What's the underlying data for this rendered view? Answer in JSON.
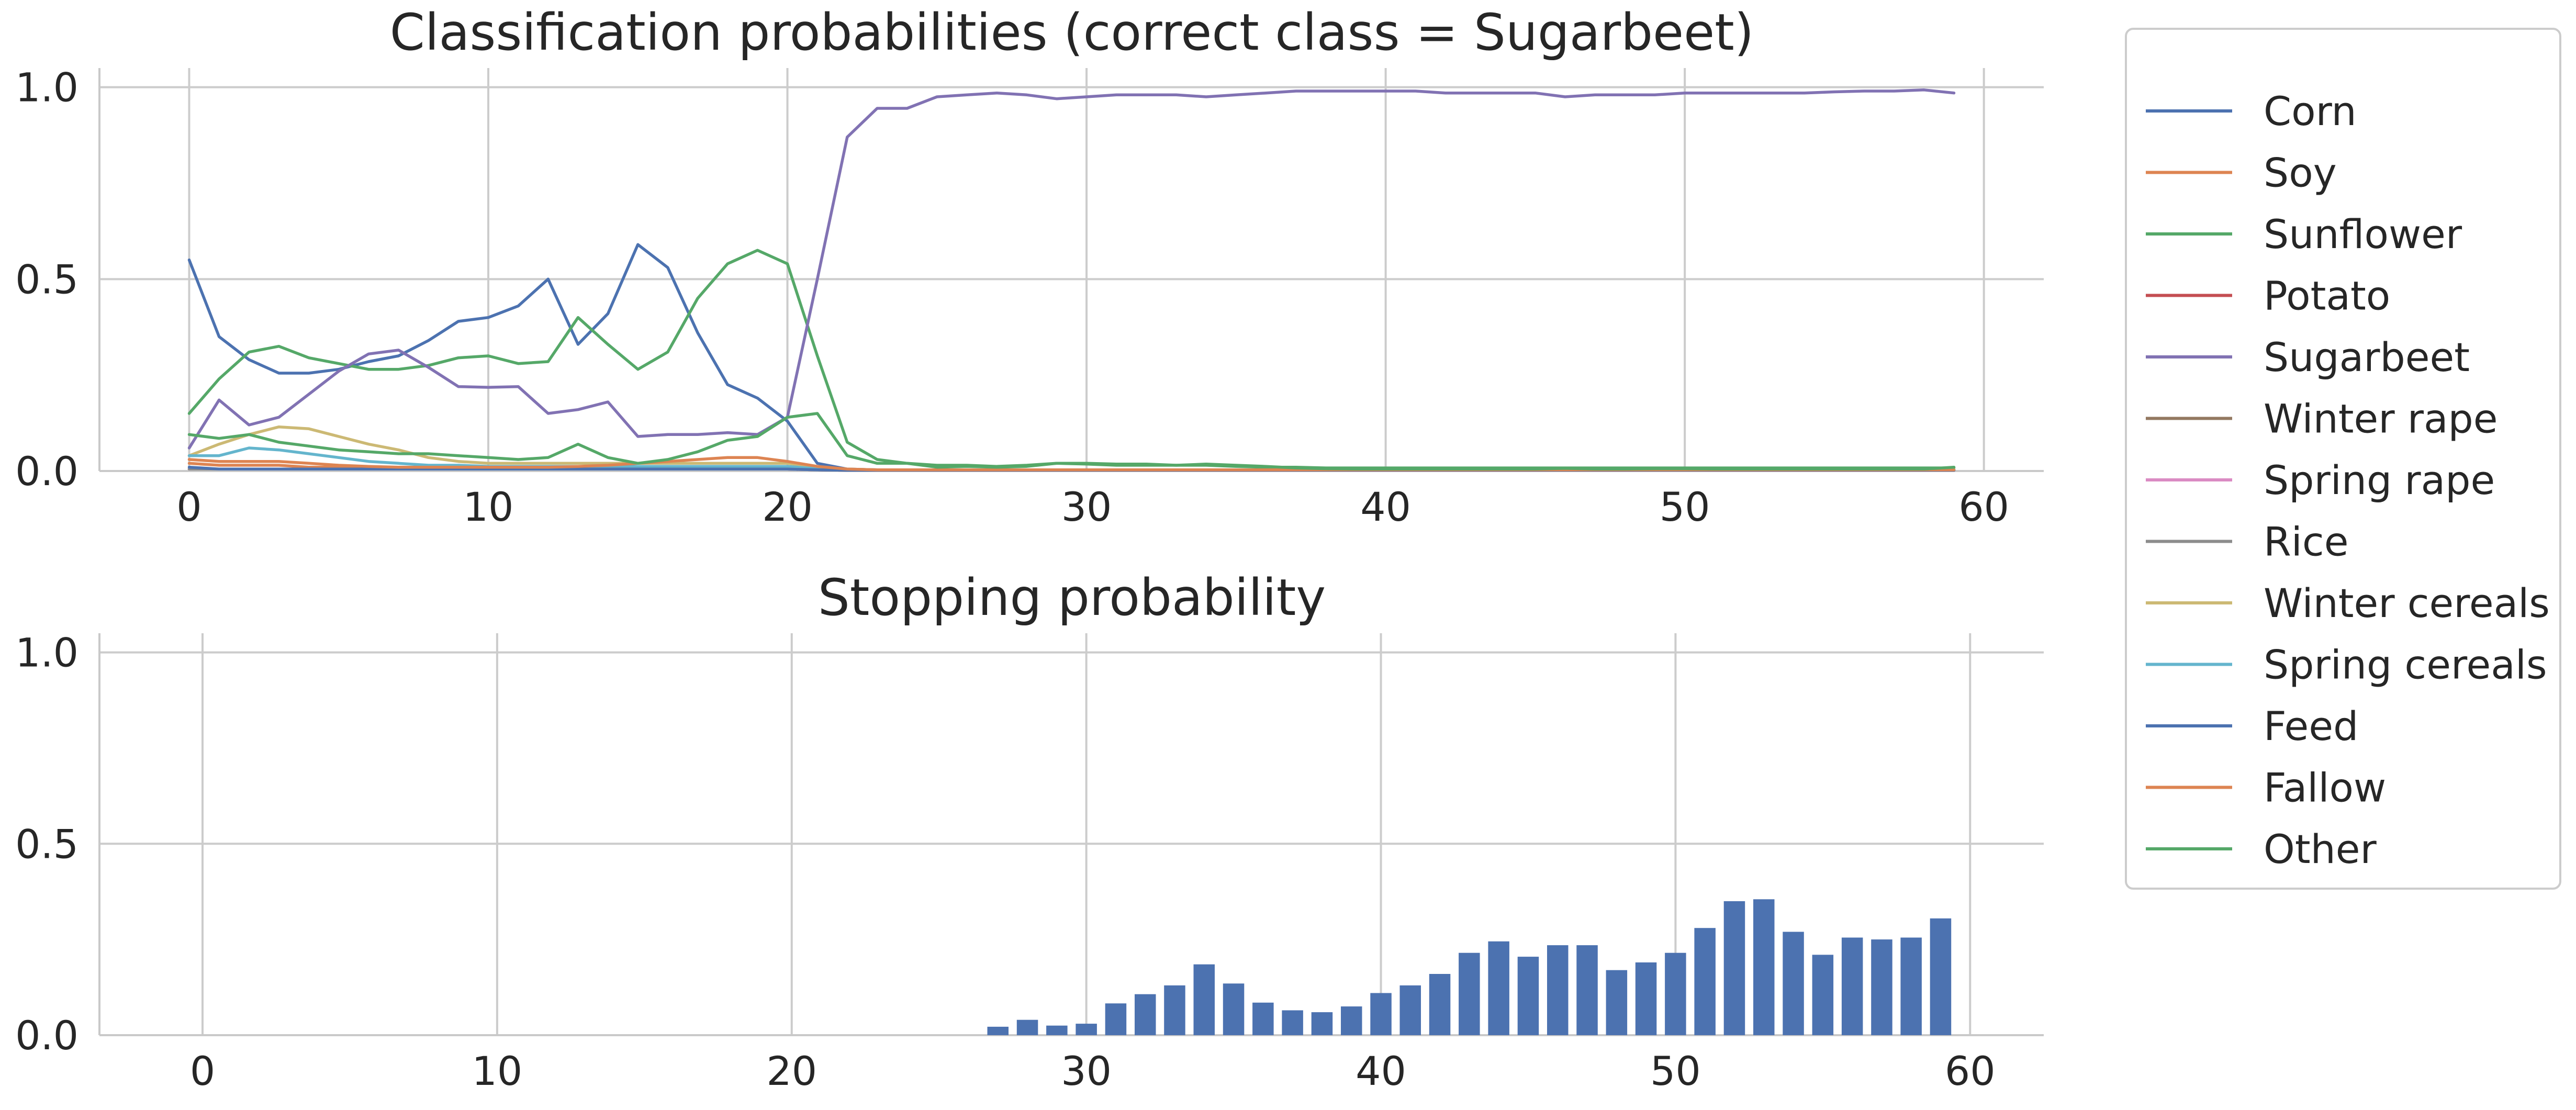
{
  "chart_data": [
    {
      "type": "line",
      "title": "Classification probabilities (correct class = Sugarbeet)",
      "xlabel": "",
      "ylabel": "",
      "xlim": [
        -3,
        62
      ],
      "ylim": [
        0,
        1.05
      ],
      "xticks": [
        0,
        10,
        20,
        30,
        40,
        50,
        60
      ],
      "yticks": [
        0.0,
        0.5,
        1.0
      ],
      "xtick_labels": [
        "0",
        "10",
        "20",
        "30",
        "40",
        "50",
        "60"
      ],
      "ytick_labels": [
        "0.0",
        "0.5",
        "1.0"
      ],
      "grid": true,
      "legend_position": "outside-right",
      "series": [
        {
          "name": "Corn",
          "color": "#4c72b0",
          "values": [
            0.55,
            0.35,
            0.29,
            0.255,
            0.255,
            0.265,
            0.285,
            0.3,
            0.34,
            0.39,
            0.4,
            0.43,
            0.5,
            0.33,
            0.41,
            0.59,
            0.53,
            0.36,
            0.225,
            0.19,
            0.13,
            0.02,
            0.005,
            0.003,
            0.003,
            0.003,
            0.003,
            0.003,
            0.003,
            0.003,
            0.003,
            0.003,
            0.003,
            0.003,
            0.003,
            0.003,
            0.003,
            0.003,
            0.003,
            0.003,
            0.003,
            0.003,
            0.003,
            0.003,
            0.003,
            0.003,
            0.003,
            0.003,
            0.003,
            0.003,
            0.003,
            0.003,
            0.003,
            0.003,
            0.003,
            0.003,
            0.003,
            0.003,
            0.003,
            0.003
          ]
        },
        {
          "name": "Soy",
          "color": "#dd8452",
          "values": [
            0.02,
            0.015,
            0.015,
            0.015,
            0.01,
            0.01,
            0.01,
            0.01,
            0.01,
            0.01,
            0.01,
            0.01,
            0.01,
            0.01,
            0.01,
            0.01,
            0.01,
            0.01,
            0.01,
            0.01,
            0.01,
            0.005,
            0.003,
            0.003,
            0.003,
            0.003,
            0.003,
            0.003,
            0.003,
            0.003,
            0.003,
            0.003,
            0.003,
            0.003,
            0.003,
            0.003,
            0.003,
            0.003,
            0.003,
            0.003,
            0.003,
            0.003,
            0.003,
            0.003,
            0.003,
            0.003,
            0.003,
            0.003,
            0.003,
            0.003,
            0.003,
            0.003,
            0.003,
            0.003,
            0.003,
            0.003,
            0.003,
            0.003,
            0.003,
            0.003
          ]
        },
        {
          "name": "Sunflower",
          "color": "#55a868",
          "values": [
            0.15,
            0.24,
            0.31,
            0.325,
            0.295,
            0.28,
            0.265,
            0.265,
            0.275,
            0.295,
            0.3,
            0.28,
            0.285,
            0.4,
            0.33,
            0.265,
            0.31,
            0.45,
            0.54,
            0.575,
            0.54,
            0.3,
            0.075,
            0.03,
            0.02,
            0.015,
            0.015,
            0.012,
            0.015,
            0.02,
            0.02,
            0.018,
            0.018,
            0.015,
            0.015,
            0.012,
            0.01,
            0.01,
            0.008,
            0.008,
            0.008,
            0.008,
            0.008,
            0.008,
            0.008,
            0.008,
            0.008,
            0.008,
            0.008,
            0.008,
            0.008,
            0.008,
            0.008,
            0.008,
            0.008,
            0.008,
            0.008,
            0.008,
            0.008,
            0.008
          ]
        },
        {
          "name": "Potato",
          "color": "#c44e52",
          "values": [
            0.005,
            0.005,
            0.005,
            0.005,
            0.005,
            0.005,
            0.005,
            0.005,
            0.005,
            0.005,
            0.005,
            0.005,
            0.005,
            0.005,
            0.005,
            0.005,
            0.005,
            0.005,
            0.005,
            0.005,
            0.005,
            0.003,
            0.002,
            0.002,
            0.002,
            0.002,
            0.002,
            0.002,
            0.002,
            0.002,
            0.002,
            0.002,
            0.002,
            0.002,
            0.002,
            0.002,
            0.002,
            0.002,
            0.002,
            0.002,
            0.002,
            0.002,
            0.002,
            0.002,
            0.002,
            0.002,
            0.002,
            0.002,
            0.002,
            0.002,
            0.002,
            0.002,
            0.002,
            0.002,
            0.002,
            0.002,
            0.002,
            0.002,
            0.002,
            0.002
          ]
        },
        {
          "name": "Sugarbeet",
          "color": "#8172b3",
          "values": [
            0.06,
            0.185,
            0.12,
            0.14,
            0.2,
            0.26,
            0.305,
            0.315,
            0.27,
            0.22,
            0.218,
            0.22,
            0.15,
            0.16,
            0.18,
            0.09,
            0.095,
            0.095,
            0.1,
            0.095,
            0.14,
            0.5,
            0.87,
            0.945,
            0.945,
            0.975,
            0.98,
            0.985,
            0.98,
            0.97,
            0.975,
            0.98,
            0.98,
            0.98,
            0.975,
            0.98,
            0.985,
            0.99,
            0.99,
            0.99,
            0.99,
            0.99,
            0.985,
            0.985,
            0.985,
            0.985,
            0.975,
            0.98,
            0.98,
            0.98,
            0.985,
            0.985,
            0.985,
            0.985,
            0.985,
            0.988,
            0.99,
            0.99,
            0.993,
            0.985
          ]
        },
        {
          "name": "Winter rape",
          "color": "#937860",
          "values": [
            0.005,
            0.005,
            0.005,
            0.005,
            0.005,
            0.005,
            0.005,
            0.005,
            0.005,
            0.005,
            0.005,
            0.005,
            0.005,
            0.005,
            0.005,
            0.005,
            0.005,
            0.005,
            0.005,
            0.005,
            0.005,
            0.003,
            0.002,
            0.002,
            0.002,
            0.002,
            0.002,
            0.002,
            0.002,
            0.002,
            0.002,
            0.002,
            0.002,
            0.002,
            0.002,
            0.002,
            0.002,
            0.002,
            0.002,
            0.002,
            0.002,
            0.002,
            0.002,
            0.002,
            0.002,
            0.002,
            0.002,
            0.002,
            0.002,
            0.002,
            0.002,
            0.002,
            0.002,
            0.002,
            0.002,
            0.002,
            0.002,
            0.002,
            0.002,
            0.002
          ]
        },
        {
          "name": "Spring rape",
          "color": "#da8bc3",
          "values": [
            0.005,
            0.005,
            0.005,
            0.005,
            0.005,
            0.005,
            0.005,
            0.005,
            0.005,
            0.005,
            0.005,
            0.005,
            0.005,
            0.005,
            0.005,
            0.005,
            0.005,
            0.005,
            0.005,
            0.005,
            0.005,
            0.003,
            0.002,
            0.002,
            0.002,
            0.002,
            0.002,
            0.002,
            0.002,
            0.002,
            0.002,
            0.002,
            0.002,
            0.002,
            0.002,
            0.002,
            0.002,
            0.002,
            0.002,
            0.002,
            0.002,
            0.002,
            0.002,
            0.002,
            0.002,
            0.002,
            0.002,
            0.002,
            0.002,
            0.002,
            0.002,
            0.002,
            0.002,
            0.002,
            0.002,
            0.002,
            0.002,
            0.002,
            0.002,
            0.002
          ]
        },
        {
          "name": "Rice",
          "color": "#8c8c8c",
          "values": [
            0.005,
            0.005,
            0.005,
            0.005,
            0.005,
            0.005,
            0.005,
            0.005,
            0.005,
            0.005,
            0.005,
            0.005,
            0.005,
            0.005,
            0.005,
            0.005,
            0.005,
            0.005,
            0.005,
            0.005,
            0.005,
            0.003,
            0.002,
            0.002,
            0.002,
            0.002,
            0.002,
            0.002,
            0.002,
            0.002,
            0.002,
            0.002,
            0.002,
            0.002,
            0.002,
            0.002,
            0.002,
            0.002,
            0.002,
            0.002,
            0.002,
            0.002,
            0.002,
            0.002,
            0.002,
            0.002,
            0.002,
            0.002,
            0.002,
            0.002,
            0.002,
            0.002,
            0.002,
            0.002,
            0.002,
            0.002,
            0.002,
            0.002,
            0.002,
            0.002
          ]
        },
        {
          "name": "Winter cereals",
          "color": "#ccb974",
          "values": [
            0.04,
            0.07,
            0.095,
            0.115,
            0.11,
            0.09,
            0.07,
            0.055,
            0.035,
            0.025,
            0.02,
            0.02,
            0.02,
            0.02,
            0.02,
            0.02,
            0.02,
            0.02,
            0.02,
            0.02,
            0.02,
            0.01,
            0.005,
            0.003,
            0.003,
            0.003,
            0.003,
            0.003,
            0.003,
            0.003,
            0.003,
            0.003,
            0.003,
            0.003,
            0.003,
            0.003,
            0.003,
            0.003,
            0.003,
            0.003,
            0.003,
            0.003,
            0.003,
            0.003,
            0.003,
            0.003,
            0.003,
            0.003,
            0.003,
            0.003,
            0.003,
            0.003,
            0.003,
            0.003,
            0.003,
            0.003,
            0.003,
            0.003,
            0.003,
            0.003
          ]
        },
        {
          "name": "Spring cereals",
          "color": "#64b5cd",
          "values": [
            0.04,
            0.04,
            0.06,
            0.055,
            0.045,
            0.035,
            0.025,
            0.02,
            0.015,
            0.015,
            0.012,
            0.012,
            0.012,
            0.012,
            0.012,
            0.012,
            0.012,
            0.012,
            0.012,
            0.012,
            0.012,
            0.006,
            0.003,
            0.003,
            0.003,
            0.003,
            0.003,
            0.003,
            0.003,
            0.003,
            0.003,
            0.003,
            0.003,
            0.003,
            0.003,
            0.003,
            0.003,
            0.003,
            0.003,
            0.003,
            0.003,
            0.003,
            0.003,
            0.003,
            0.003,
            0.003,
            0.003,
            0.003,
            0.003,
            0.003,
            0.003,
            0.003,
            0.003,
            0.003,
            0.003,
            0.003,
            0.003,
            0.003,
            0.003,
            0.003
          ]
        },
        {
          "name": "Feed",
          "color": "#4c72b0",
          "values": [
            0.01,
            0.005,
            0.005,
            0.005,
            0.005,
            0.005,
            0.005,
            0.005,
            0.005,
            0.005,
            0.005,
            0.005,
            0.005,
            0.005,
            0.005,
            0.005,
            0.005,
            0.005,
            0.005,
            0.005,
            0.005,
            0.003,
            0.002,
            0.002,
            0.002,
            0.002,
            0.002,
            0.002,
            0.002,
            0.002,
            0.002,
            0.002,
            0.002,
            0.002,
            0.002,
            0.002,
            0.002,
            0.002,
            0.002,
            0.002,
            0.002,
            0.002,
            0.002,
            0.002,
            0.002,
            0.002,
            0.002,
            0.002,
            0.002,
            0.002,
            0.002,
            0.002,
            0.002,
            0.002,
            0.002,
            0.002,
            0.002,
            0.002,
            0.002,
            0.002
          ]
        },
        {
          "name": "Fallow",
          "color": "#dd8452",
          "values": [
            0.03,
            0.025,
            0.025,
            0.025,
            0.02,
            0.015,
            0.012,
            0.01,
            0.01,
            0.01,
            0.01,
            0.01,
            0.01,
            0.012,
            0.015,
            0.02,
            0.025,
            0.03,
            0.035,
            0.035,
            0.025,
            0.012,
            0.005,
            0.003,
            0.003,
            0.003,
            0.003,
            0.003,
            0.003,
            0.003,
            0.003,
            0.003,
            0.003,
            0.003,
            0.003,
            0.003,
            0.003,
            0.003,
            0.003,
            0.003,
            0.003,
            0.003,
            0.003,
            0.003,
            0.003,
            0.003,
            0.003,
            0.003,
            0.003,
            0.003,
            0.003,
            0.003,
            0.003,
            0.003,
            0.003,
            0.003,
            0.003,
            0.003,
            0.003,
            0.003
          ]
        },
        {
          "name": "Other",
          "color": "#55a868",
          "values": [
            0.095,
            0.085,
            0.095,
            0.075,
            0.065,
            0.055,
            0.05,
            0.045,
            0.045,
            0.04,
            0.035,
            0.03,
            0.035,
            0.07,
            0.035,
            0.02,
            0.03,
            0.05,
            0.08,
            0.09,
            0.14,
            0.15,
            0.04,
            0.02,
            0.02,
            0.01,
            0.012,
            0.01,
            0.012,
            0.02,
            0.018,
            0.015,
            0.015,
            0.015,
            0.018,
            0.015,
            0.012,
            0.008,
            0.006,
            0.005,
            0.005,
            0.005,
            0.005,
            0.005,
            0.005,
            0.005,
            0.007,
            0.005,
            0.005,
            0.006,
            0.006,
            0.005,
            0.005,
            0.005,
            0.005,
            0.005,
            0.005,
            0.005,
            0.005,
            0.01
          ]
        }
      ]
    },
    {
      "type": "bar",
      "title": "Stopping probability",
      "xlabel": "",
      "ylabel": "",
      "xlim": [
        -3.5,
        62.5
      ],
      "ylim": [
        0,
        1.05
      ],
      "xticks": [
        0,
        10,
        20,
        30,
        40,
        50,
        60
      ],
      "yticks": [
        0.0,
        0.5,
        1.0
      ],
      "xtick_labels": [
        "0",
        "10",
        "20",
        "30",
        "40",
        "50",
        "60"
      ],
      "ytick_labels": [
        "0.0",
        "0.5",
        "1.0"
      ],
      "grid": true,
      "bar_color": "#4c72b0",
      "x": [
        0,
        1,
        2,
        3,
        4,
        5,
        6,
        7,
        8,
        9,
        10,
        11,
        12,
        13,
        14,
        15,
        16,
        17,
        18,
        19,
        20,
        21,
        22,
        23,
        24,
        25,
        26,
        27,
        28,
        29,
        30,
        31,
        32,
        33,
        34,
        35,
        36,
        37,
        38,
        39,
        40,
        41,
        42,
        43,
        44,
        45,
        46,
        47,
        48,
        49,
        50,
        51,
        52,
        53,
        54,
        55,
        56,
        57,
        58,
        59
      ],
      "values": [
        0,
        0,
        0,
        0,
        0,
        0,
        0,
        0,
        0,
        0,
        0,
        0,
        0,
        0,
        0,
        0,
        0,
        0,
        0,
        0,
        0,
        0,
        0,
        0,
        0,
        0,
        0,
        0.022,
        0.04,
        0.025,
        0.03,
        0.083,
        0.107,
        0.13,
        0.185,
        0.135,
        0.085,
        0.065,
        0.06,
        0.075,
        0.11,
        0.13,
        0.16,
        0.215,
        0.245,
        0.205,
        0.235,
        0.235,
        0.17,
        0.19,
        0.215,
        0.28,
        0.35,
        0.355,
        0.27,
        0.21,
        0.255,
        0.25,
        0.255,
        0.305
      ]
    }
  ]
}
